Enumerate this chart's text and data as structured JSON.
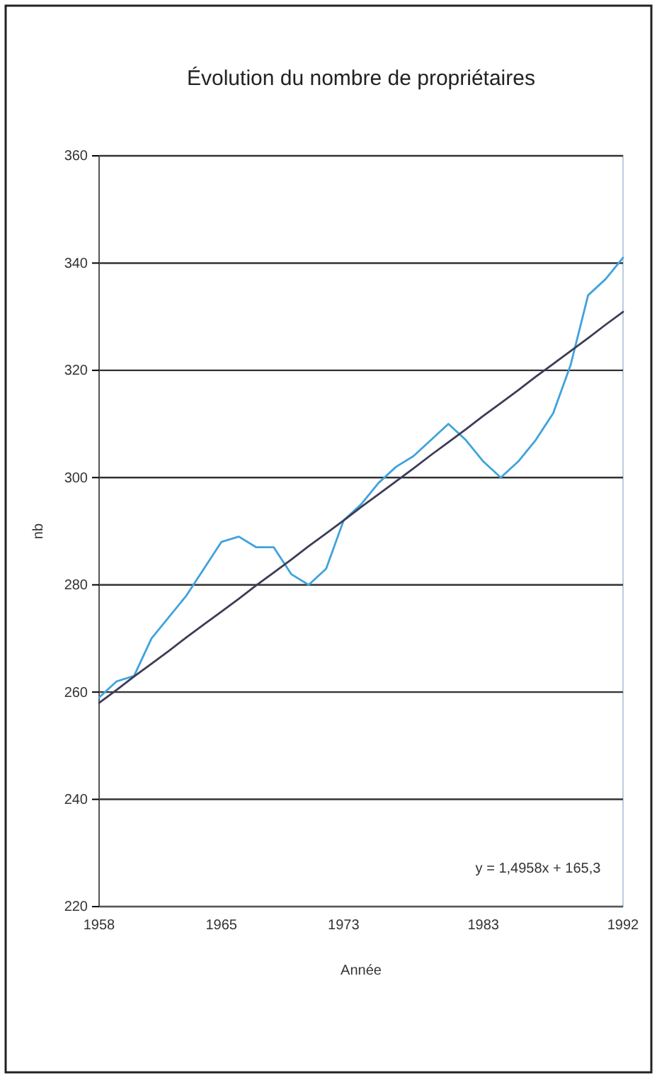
{
  "chart_data": {
    "type": "line",
    "title": "Évolution du nombre de propriétaires",
    "xlabel": "Année",
    "ylabel": "nb",
    "categories": [
      "1958",
      null,
      null,
      null,
      null,
      null,
      null,
      "1965",
      null,
      null,
      null,
      null,
      null,
      null,
      "1973",
      null,
      null,
      null,
      null,
      null,
      null,
      null,
      "1983",
      null,
      null,
      null,
      null,
      null,
      null,
      null,
      "1992"
    ],
    "series": [
      {
        "color": "#3fa3dc",
        "values": [
          259,
          262,
          263,
          270,
          274,
          278,
          283,
          288,
          289,
          287,
          287,
          282,
          280,
          283,
          292,
          295,
          299,
          302,
          304,
          307,
          310,
          307,
          303,
          300,
          303,
          307,
          312,
          321,
          334,
          337,
          341
        ]
      },
      {
        "color": "#3c3c58",
        "values": [
          258.0,
          260.4,
          262.9,
          265.3,
          267.7,
          270.2,
          272.6,
          275.0,
          277.4,
          279.9,
          282.3,
          284.7,
          287.2,
          289.6,
          292.0,
          294.5,
          296.9,
          299.3,
          301.7,
          304.2,
          306.6,
          309.0,
          311.5,
          313.9,
          316.3,
          318.8,
          321.2,
          323.6,
          326.0,
          328.5,
          330.9
        ]
      }
    ],
    "ylim": [
      220,
      360
    ],
    "yticks": [
      220,
      240,
      260,
      280,
      300,
      320,
      340,
      360
    ],
    "grid": "y",
    "annotations": [
      "y = 1,4958x + 165,3"
    ]
  }
}
